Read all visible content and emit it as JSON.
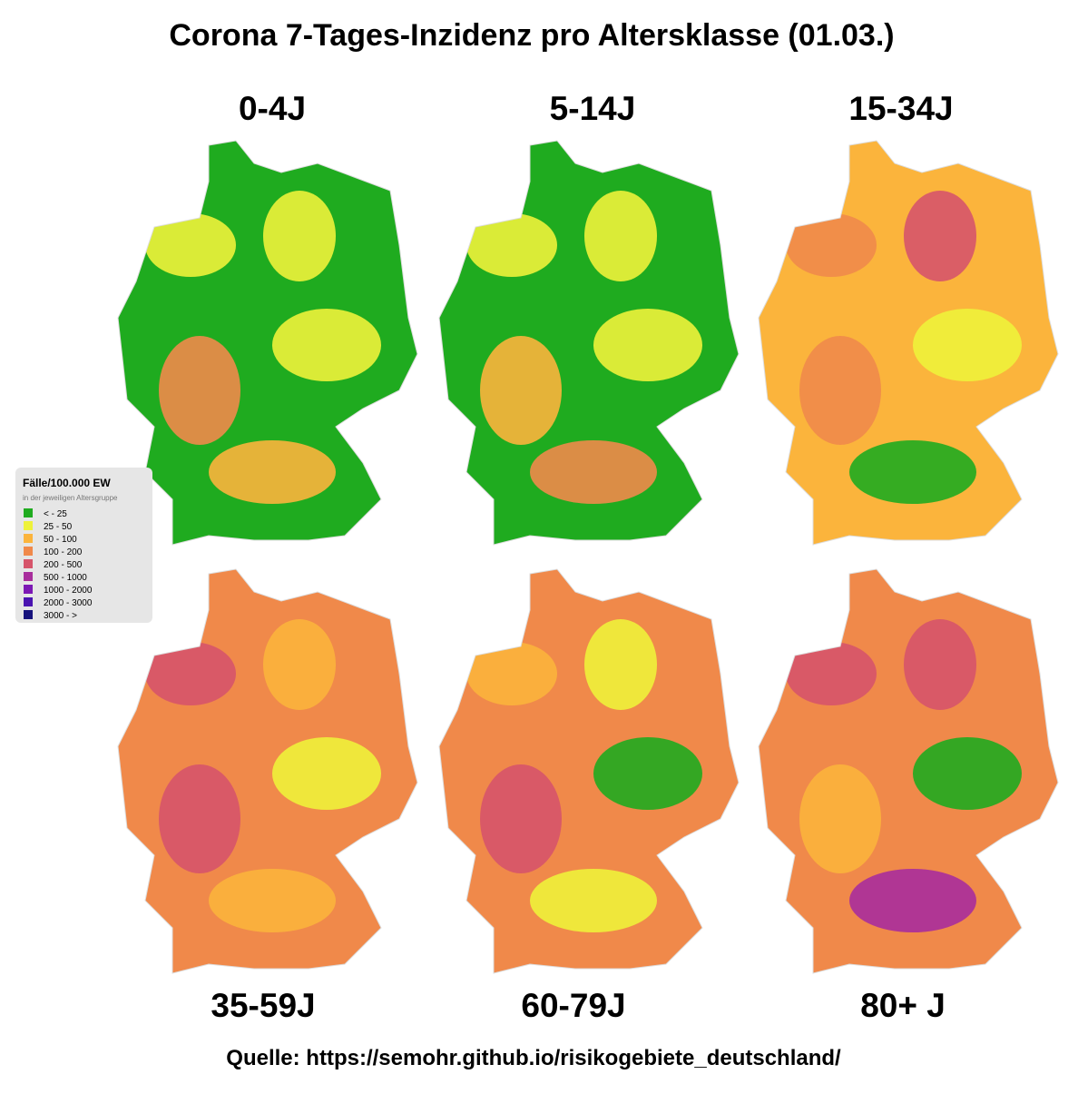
{
  "title": "Corona 7-Tages-Inzidenz pro Altersklasse (01.03.)",
  "panels": [
    {
      "label": "0-4J"
    },
    {
      "label": "5-14J"
    },
    {
      "label": "15-34J"
    },
    {
      "label": "35-59J"
    },
    {
      "label": "60-79J"
    },
    {
      "label": "80+ J"
    }
  ],
  "legend": {
    "title": "Fälle/100.000 EW",
    "subtitle": "in der jeweiligen Altersgruppe",
    "items": [
      {
        "label": "< - 25",
        "color": "#1fab1f"
      },
      {
        "label": "25 - 50",
        "color": "#eef23a"
      },
      {
        "label": "50 - 100",
        "color": "#fbb43c"
      },
      {
        "label": "100 - 200",
        "color": "#f0894a"
      },
      {
        "label": "200 - 500",
        "color": "#d6546a"
      },
      {
        "label": "500 - 1000",
        "color": "#a82d9c"
      },
      {
        "label": "1000 - 2000",
        "color": "#7c18b4"
      },
      {
        "label": "2000 - 3000",
        "color": "#4a14b0"
      },
      {
        "label": "3000 - >",
        "color": "#16127c"
      }
    ]
  },
  "source": "Quelle: https://semohr.github.io/risikogebiete_deutschland/"
}
